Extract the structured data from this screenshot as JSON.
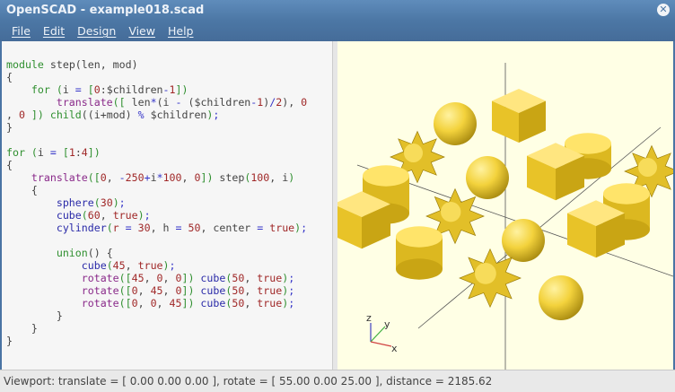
{
  "window": {
    "title": "OpenSCAD - example018.scad",
    "close_icon": "close-icon"
  },
  "menu": [
    "File",
    "Edit",
    "Design",
    "View",
    "Help"
  ],
  "editor": {
    "lines": [
      [
        [
          "module ",
          "kw"
        ],
        [
          "step(len, mod)",
          "id"
        ]
      ],
      [
        [
          "{",
          "id"
        ]
      ],
      [
        [
          "    for ",
          "kw"
        ],
        [
          "(",
          "br"
        ],
        [
          "i ",
          "id"
        ],
        [
          "= ",
          "op"
        ],
        [
          "[",
          "br"
        ],
        [
          "0",
          "num"
        ],
        [
          ":$children",
          "id"
        ],
        [
          "-",
          "op"
        ],
        [
          "1",
          "num"
        ],
        [
          "])",
          "br"
        ]
      ],
      [
        [
          "        translate",
          "mod"
        ],
        [
          "([ ",
          "br"
        ],
        [
          "len",
          "id"
        ],
        [
          "*",
          "op"
        ],
        [
          "(i ",
          "id"
        ],
        [
          "- ",
          "op"
        ],
        [
          "($children",
          "id"
        ],
        [
          "-",
          "op"
        ],
        [
          "1",
          "num"
        ],
        [
          ")",
          "id"
        ],
        [
          "/",
          "op"
        ],
        [
          "2",
          "num"
        ],
        [
          "), ",
          "id"
        ],
        [
          "0",
          "num"
        ]
      ],
      [
        [
          ", ",
          "id"
        ],
        [
          "0",
          "num"
        ],
        [
          " ])",
          "br"
        ],
        [
          " child",
          "kw"
        ],
        [
          "((i+mod) ",
          "id"
        ],
        [
          "% ",
          "op"
        ],
        [
          "$children",
          "id"
        ],
        [
          ")",
          "br"
        ],
        [
          ";",
          "op"
        ]
      ],
      [
        [
          "}",
          "id"
        ]
      ],
      [
        [
          "",
          "id"
        ]
      ],
      [
        [
          "for ",
          "kw"
        ],
        [
          "(",
          "br"
        ],
        [
          "i ",
          "id"
        ],
        [
          "= ",
          "op"
        ],
        [
          "[",
          "br"
        ],
        [
          "1",
          "num"
        ],
        [
          ":",
          "id"
        ],
        [
          "4",
          "num"
        ],
        [
          "])",
          "br"
        ]
      ],
      [
        [
          "{",
          "id"
        ]
      ],
      [
        [
          "    translate",
          "mod"
        ],
        [
          "([",
          "br"
        ],
        [
          "0",
          "num"
        ],
        [
          ", ",
          "id"
        ],
        [
          "-",
          "op"
        ],
        [
          "250",
          "num"
        ],
        [
          "+",
          "op"
        ],
        [
          "i",
          "id"
        ],
        [
          "*",
          "op"
        ],
        [
          "100",
          "num"
        ],
        [
          ", ",
          "id"
        ],
        [
          "0",
          "num"
        ],
        [
          "])",
          "br"
        ],
        [
          " step",
          "id"
        ],
        [
          "(",
          "br"
        ],
        [
          "100",
          "num"
        ],
        [
          ", i",
          "id"
        ],
        [
          ")",
          "br"
        ]
      ],
      [
        [
          "    {",
          "id"
        ]
      ],
      [
        [
          "        sphere",
          "prim"
        ],
        [
          "(",
          "br"
        ],
        [
          "30",
          "num"
        ],
        [
          ")",
          "br"
        ],
        [
          ";",
          "op"
        ]
      ],
      [
        [
          "        cube",
          "prim"
        ],
        [
          "(",
          "br"
        ],
        [
          "60",
          "num"
        ],
        [
          ", ",
          "id"
        ],
        [
          "true",
          "num"
        ],
        [
          ")",
          "br"
        ],
        [
          ";",
          "op"
        ]
      ],
      [
        [
          "        cylinder",
          "prim"
        ],
        [
          "(",
          "br"
        ],
        [
          "r ",
          "num"
        ],
        [
          "= ",
          "op"
        ],
        [
          "30",
          "num"
        ],
        [
          ", h ",
          "id"
        ],
        [
          "= ",
          "op"
        ],
        [
          "50",
          "num"
        ],
        [
          ", center ",
          "id"
        ],
        [
          "= ",
          "op"
        ],
        [
          "true",
          "num"
        ],
        [
          ")",
          "br"
        ],
        [
          ";",
          "op"
        ]
      ],
      [
        [
          "",
          "id"
        ]
      ],
      [
        [
          "        union",
          "kw"
        ],
        [
          "() {",
          "id"
        ]
      ],
      [
        [
          "            cube",
          "prim"
        ],
        [
          "(",
          "br"
        ],
        [
          "45",
          "num"
        ],
        [
          ", ",
          "id"
        ],
        [
          "true",
          "num"
        ],
        [
          ")",
          "br"
        ],
        [
          ";",
          "op"
        ]
      ],
      [
        [
          "            rotate",
          "mod"
        ],
        [
          "([",
          "br"
        ],
        [
          "45",
          "num"
        ],
        [
          ", ",
          "id"
        ],
        [
          "0",
          "num"
        ],
        [
          ", ",
          "id"
        ],
        [
          "0",
          "num"
        ],
        [
          "])",
          "br"
        ],
        [
          " cube",
          "prim"
        ],
        [
          "(",
          "br"
        ],
        [
          "50",
          "num"
        ],
        [
          ", ",
          "id"
        ],
        [
          "true",
          "num"
        ],
        [
          ")",
          "br"
        ],
        [
          ";",
          "op"
        ]
      ],
      [
        [
          "            rotate",
          "mod"
        ],
        [
          "([",
          "br"
        ],
        [
          "0",
          "num"
        ],
        [
          ", ",
          "id"
        ],
        [
          "45",
          "num"
        ],
        [
          ", ",
          "id"
        ],
        [
          "0",
          "num"
        ],
        [
          "])",
          "br"
        ],
        [
          " cube",
          "prim"
        ],
        [
          "(",
          "br"
        ],
        [
          "50",
          "num"
        ],
        [
          ", ",
          "id"
        ],
        [
          "true",
          "num"
        ],
        [
          ")",
          "br"
        ],
        [
          ";",
          "op"
        ]
      ],
      [
        [
          "            rotate",
          "mod"
        ],
        [
          "([",
          "br"
        ],
        [
          "0",
          "num"
        ],
        [
          ", ",
          "id"
        ],
        [
          "0",
          "num"
        ],
        [
          ", ",
          "id"
        ],
        [
          "45",
          "num"
        ],
        [
          "])",
          "br"
        ],
        [
          " cube",
          "prim"
        ],
        [
          "(",
          "br"
        ],
        [
          "50",
          "num"
        ],
        [
          ", ",
          "id"
        ],
        [
          "true",
          "num"
        ],
        [
          ")",
          "br"
        ],
        [
          ";",
          "op"
        ]
      ],
      [
        [
          "        }",
          "id"
        ]
      ],
      [
        [
          "    }",
          "id"
        ]
      ],
      [
        [
          "}",
          "id"
        ]
      ]
    ]
  },
  "viewport": {
    "background": "#ffffe5",
    "object_color": "#f5d540",
    "axis_labels": {
      "x": "x",
      "y": "y",
      "z": "z"
    }
  },
  "status": {
    "text": "Viewport: translate = [ 0.00 0.00 0.00 ], rotate = [ 55.00 0.00 25.00 ], distance = 2185.62"
  }
}
